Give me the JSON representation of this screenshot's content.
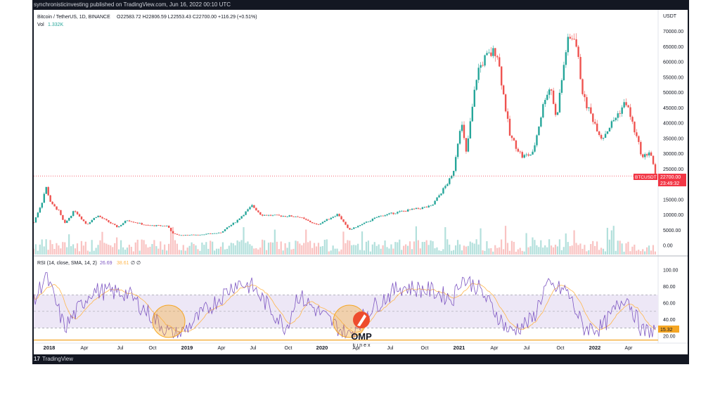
{
  "header": {
    "published": "synchronisticinvesting published on TradingView.com, Jun 16, 2022 00:10 UTC"
  },
  "footer": {
    "brand": "TradingView",
    "logo": "17"
  },
  "legend": {
    "symbol": "Bitcoin / TetherUS, 1D, BINANCE",
    "ohlc": "O22583.72 H22806.59 L22553.43 C22700.00 +116.29 (+0.51%)",
    "vol_label": "Vol",
    "vol_value": "1.332K",
    "rsi_label": "RSI (14, close, SMA, 14, 2)",
    "rsi_value": "26.69",
    "rsi_ma_value": "38.61",
    "rsi_extra": "∅ ∅"
  },
  "price_axis": {
    "unit": "USDT",
    "ticks": [
      {
        "v": 70000,
        "t": "70000.00"
      },
      {
        "v": 65000,
        "t": "65000.00"
      },
      {
        "v": 60000,
        "t": "60000.00"
      },
      {
        "v": 55000,
        "t": "55000.00"
      },
      {
        "v": 50000,
        "t": "50000.00"
      },
      {
        "v": 45000,
        "t": "45000.00"
      },
      {
        "v": 40000,
        "t": "40000.00"
      },
      {
        "v": 35000,
        "t": "35000.00"
      },
      {
        "v": 30000,
        "t": "30000.00"
      },
      {
        "v": 25000,
        "t": "25000.00"
      },
      {
        "v": 15000,
        "t": "15000.00"
      },
      {
        "v": 10000,
        "t": "10000.00"
      },
      {
        "v": 5000,
        "t": "5000.00"
      },
      {
        "v": 0,
        "t": "0.00"
      }
    ],
    "last_symbol": "BTCUSDT",
    "last_price": "22700.00",
    "countdown": "23:49:32"
  },
  "rsi_axis": {
    "ticks": [
      {
        "v": 100,
        "t": "100.00"
      },
      {
        "v": 80,
        "t": "80.00"
      },
      {
        "v": 60,
        "t": "60.00"
      },
      {
        "v": 40,
        "t": "40.00"
      },
      {
        "v": 20,
        "t": "20.00"
      }
    ],
    "level_label": "15.32"
  },
  "time_axis": [
    {
      "t": "2018",
      "major": true
    },
    {
      "t": "Apr"
    },
    {
      "t": "Jul"
    },
    {
      "t": "Oct"
    },
    {
      "t": "2019",
      "major": true
    },
    {
      "t": "Apr"
    },
    {
      "t": "Jul"
    },
    {
      "t": "Oct"
    },
    {
      "t": "2020",
      "major": true
    },
    {
      "t": "Apr"
    },
    {
      "t": "Jul"
    },
    {
      "t": "Oct"
    },
    {
      "t": "2021",
      "major": true
    },
    {
      "t": "Apr"
    },
    {
      "t": "Jul"
    },
    {
      "t": "Oct"
    },
    {
      "t": "2022",
      "major": true
    },
    {
      "t": "Apr"
    }
  ],
  "watermark": {
    "brand": "OMP",
    "sub": "F i n e x"
  },
  "colors": {
    "up": "#26a69a",
    "down": "#ef5350",
    "rsi_line": "#7e57c2",
    "rsi_ma": "#ffb74d",
    "rsi_band": "#ede7f6",
    "level_line": "#f5a623",
    "highlight": "#f5a623",
    "last_price_bg": "#f23645",
    "dark_frame": "#131722"
  },
  "chart_data": {
    "type": "line",
    "title": "Bitcoin / TetherUS, 1D, BINANCE",
    "xlabel": "",
    "ylabel": "USDT",
    "ylim": [
      0,
      72000
    ],
    "series": [
      {
        "name": "Bitcoin / TetherUS",
        "x": [
          "2017-11-15",
          "2017-12-10",
          "2017-12-17",
          "2018-01-01",
          "2018-01-20",
          "2018-02-06",
          "2018-03-05",
          "2018-04-06",
          "2018-05-05",
          "2018-06-29",
          "2018-07-24",
          "2018-09-15",
          "2018-11-10",
          "2018-11-25",
          "2018-12-15",
          "2019-02-01",
          "2019-04-01",
          "2019-05-15",
          "2019-06-26",
          "2019-07-20",
          "2019-09-01",
          "2019-10-26",
          "2019-12-17",
          "2020-02-12",
          "2020-03-12",
          "2020-04-15",
          "2020-06-01",
          "2020-07-27",
          "2020-10-21",
          "2020-11-25",
          "2020-12-17",
          "2021-01-08",
          "2021-01-22",
          "2021-02-21",
          "2021-03-13",
          "2021-04-14",
          "2021-05-19",
          "2021-06-22",
          "2021-07-20",
          "2021-08-23",
          "2021-09-07",
          "2021-09-21",
          "2021-10-20",
          "2021-11-10",
          "2021-12-04",
          "2022-01-22",
          "2022-03-28",
          "2022-05-12",
          "2022-06-01",
          "2022-06-15"
        ],
        "values": [
          7500,
          15000,
          19500,
          13500,
          11500,
          7000,
          11500,
          6800,
          9800,
          5900,
          8300,
          6500,
          6400,
          3800,
          3300,
          3500,
          4100,
          8000,
          13000,
          10000,
          9700,
          9500,
          6700,
          10300,
          5000,
          6800,
          9500,
          11000,
          12800,
          19000,
          23000,
          41000,
          30000,
          57000,
          61000,
          64000,
          36000,
          29000,
          30000,
          49000,
          52000,
          41000,
          66000,
          69000,
          48000,
          35000,
          47000,
          28500,
          31000,
          22700
        ]
      }
    ],
    "rsi": {
      "name": "RSI (14, close, SMA, 14, 2)",
      "x": [
        "2017-11-15",
        "2017-12-17",
        "2018-02-06",
        "2018-04-20",
        "2018-07-24",
        "2018-11-25",
        "2018-12-20",
        "2019-05-15",
        "2019-06-26",
        "2019-09-25",
        "2019-10-26",
        "2020-03-12",
        "2020-05-01",
        "2020-07-27",
        "2020-10-21",
        "2020-12-17",
        "2021-01-08",
        "2021-02-21",
        "2021-05-19",
        "2021-07-20",
        "2021-08-23",
        "2021-10-20",
        "2021-12-04",
        "2022-01-22",
        "2022-03-28",
        "2022-05-12",
        "2022-06-15"
      ],
      "values": [
        60,
        95,
        30,
        75,
        72,
        20,
        25,
        85,
        80,
        30,
        70,
        20,
        50,
        80,
        75,
        65,
        90,
        80,
        25,
        40,
        80,
        75,
        30,
        30,
        70,
        25,
        26.69
      ],
      "ylim": [
        0,
        100
      ],
      "band": [
        30,
        70
      ],
      "level": 15.32
    },
    "grid": false,
    "legend_position": "top-left"
  }
}
